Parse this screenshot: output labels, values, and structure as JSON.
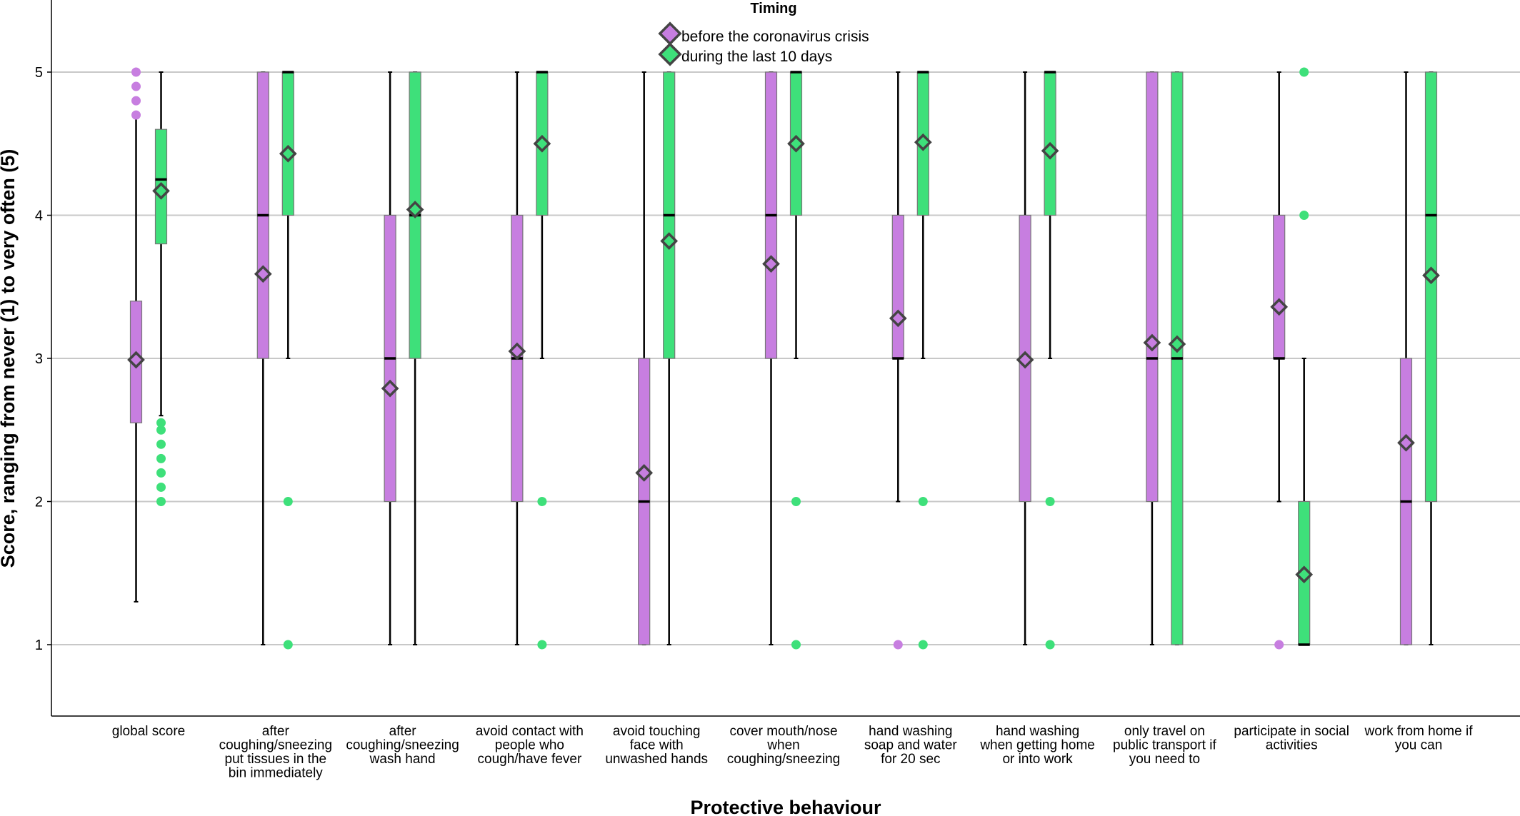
{
  "chart_data": {
    "type": "boxplot",
    "xlabel": "Protective behaviour",
    "ylabel": "Score, ranging from never (1) to very often (5)",
    "ylim": [
      0.5,
      5.5
    ],
    "yticks": [
      1,
      2,
      3,
      4,
      5
    ],
    "grid": true,
    "legend": {
      "title": "Timing",
      "placement": "top-center"
    },
    "categories": [
      "global score",
      "after coughing/sneezing put tissues in the bin immediately",
      "after coughing/sneezing wash hand",
      "avoid contact with people who cough/have fever",
      "avoid touching face with unwashed hands",
      "cover mouth/nose when coughing/sneezing",
      "hand washing soap and water for 20 sec",
      "hand washing when getting home or into work",
      "only travel on public transport if you need to",
      "participate in social activities",
      "work from home if you can"
    ],
    "category_lines": [
      [
        "global score"
      ],
      [
        "after",
        "coughing/sneezing",
        "put tissues in the",
        "bin immediately"
      ],
      [
        "after",
        "coughing/sneezing",
        "wash hand"
      ],
      [
        "avoid contact with",
        "people who",
        "cough/have fever"
      ],
      [
        "avoid touching",
        "face with",
        "unwashed hands"
      ],
      [
        "cover mouth/nose",
        "when",
        "coughing/sneezing"
      ],
      [
        "hand washing",
        "soap and water",
        "for 20 sec"
      ],
      [
        "hand washing",
        "when getting home",
        "or into work"
      ],
      [
        "only travel on",
        "public transport if",
        "you need to"
      ],
      [
        "participate in social",
        "activities"
      ],
      [
        "work from home if",
        "you can"
      ]
    ],
    "series": [
      {
        "name": "before the coronavirus crisis",
        "color": "#c77ee0",
        "boxes": [
          {
            "min": 1.3,
            "q1": 2.55,
            "median": 3.0,
            "q3": 3.4,
            "max": 4.7,
            "mean": 2.99,
            "outliers": [
              4.7,
              4.8,
              4.9,
              5.0
            ]
          },
          {
            "min": 1,
            "q1": 3,
            "median": 4,
            "q3": 5,
            "max": 5,
            "mean": 3.59,
            "outliers": []
          },
          {
            "min": 1,
            "q1": 2,
            "median": 3,
            "q3": 4,
            "max": 5,
            "mean": 2.79,
            "outliers": []
          },
          {
            "min": 1,
            "q1": 2,
            "median": 3,
            "q3": 4,
            "max": 5,
            "mean": 3.05,
            "outliers": []
          },
          {
            "min": 1,
            "q1": 1,
            "median": 2,
            "q3": 3,
            "max": 5,
            "mean": 2.2,
            "outliers": []
          },
          {
            "min": 1,
            "q1": 3,
            "median": 4,
            "q3": 5,
            "max": 5,
            "mean": 3.66,
            "outliers": []
          },
          {
            "min": 2,
            "q1": 3,
            "median": 3,
            "q3": 4,
            "max": 5,
            "mean": 3.28,
            "outliers": [
              1
            ]
          },
          {
            "min": 1,
            "q1": 2,
            "median": 3,
            "q3": 4,
            "max": 5,
            "mean": 2.99,
            "outliers": []
          },
          {
            "min": 1,
            "q1": 2,
            "median": 3,
            "q3": 5,
            "max": 5,
            "mean": 3.11,
            "outliers": []
          },
          {
            "min": 2,
            "q1": 3,
            "median": 3,
            "q3": 4,
            "max": 5,
            "mean": 3.36,
            "outliers": [
              1
            ]
          },
          {
            "min": 1,
            "q1": 1,
            "median": 2,
            "q3": 3,
            "max": 5,
            "mean": 2.41,
            "outliers": []
          }
        ]
      },
      {
        "name": "during the last 10 days",
        "color": "#3ee07a",
        "boxes": [
          {
            "min": 2.6,
            "q1": 3.8,
            "median": 4.25,
            "q3": 4.6,
            "max": 5.0,
            "mean": 4.17,
            "outliers": [
              2.0,
              2.1,
              2.2,
              2.3,
              2.4,
              2.5,
              2.55
            ]
          },
          {
            "min": 3,
            "q1": 4,
            "median": 5,
            "q3": 5,
            "max": 5,
            "mean": 4.43,
            "outliers": [
              1,
              2
            ]
          },
          {
            "min": 1,
            "q1": 3,
            "median": 4,
            "q3": 5,
            "max": 5,
            "mean": 4.04,
            "outliers": []
          },
          {
            "min": 3,
            "q1": 4,
            "median": 5,
            "q3": 5,
            "max": 5,
            "mean": 4.5,
            "outliers": [
              1,
              2
            ]
          },
          {
            "min": 1,
            "q1": 3,
            "median": 4,
            "q3": 5,
            "max": 5,
            "mean": 3.82,
            "outliers": []
          },
          {
            "min": 3,
            "q1": 4,
            "median": 5,
            "q3": 5,
            "max": 5,
            "mean": 4.5,
            "outliers": [
              1,
              2
            ]
          },
          {
            "min": 3,
            "q1": 4,
            "median": 5,
            "q3": 5,
            "max": 5,
            "mean": 4.51,
            "outliers": [
              1,
              2
            ]
          },
          {
            "min": 3,
            "q1": 4,
            "median": 5,
            "q3": 5,
            "max": 5,
            "mean": 4.45,
            "outliers": [
              1,
              2
            ]
          },
          {
            "min": 1,
            "q1": 1,
            "median": 3,
            "q3": 5,
            "max": 5,
            "mean": 3.1,
            "outliers": []
          },
          {
            "min": 1,
            "q1": 1,
            "median": 1,
            "q3": 2,
            "max": 3,
            "mean": 1.49,
            "outliers": [
              4,
              5
            ]
          },
          {
            "min": 1,
            "q1": 2,
            "median": 4,
            "q3": 5,
            "max": 5,
            "mean": 3.58,
            "outliers": []
          }
        ]
      }
    ]
  }
}
